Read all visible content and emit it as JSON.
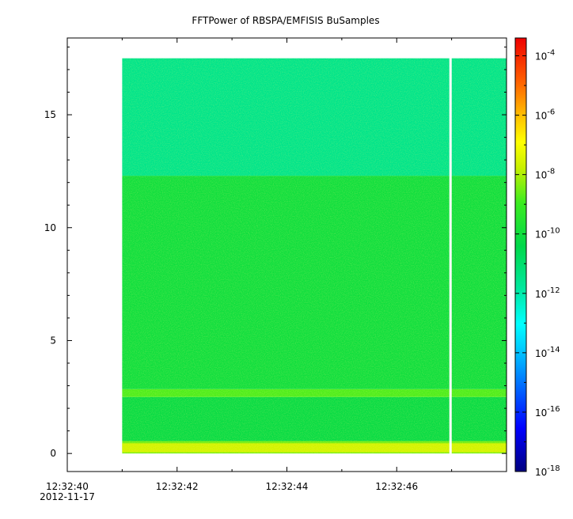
{
  "chart_data": {
    "type": "heatmap",
    "title": "FFTPower of RBSPA/EMFISIS  BuSamples",
    "xlabel": "",
    "ylabel": "",
    "x_axis": {
      "range": [
        "12:32:40",
        "12:32:48"
      ],
      "ticks": [
        {
          "time_s": 0,
          "label": "12:32:40",
          "sublabel": "2012-11-17"
        },
        {
          "time_s": 2,
          "label": "12:32:42"
        },
        {
          "time_s": 4,
          "label": "12:32:44"
        },
        {
          "time_s": 6,
          "label": "12:32:46"
        }
      ],
      "minor_ticks_s": [
        1,
        3,
        5,
        7
      ]
    },
    "y_axis": {
      "range": [
        -0.8,
        18.4
      ],
      "ticks": [
        0,
        5,
        10,
        15
      ],
      "tick_labels": [
        "0",
        "5",
        "10",
        "15"
      ]
    },
    "colorbar": {
      "scale": "log",
      "range_exponent": [
        -18,
        -3.4
      ],
      "tick_exponents": [
        -4,
        -6,
        -8,
        -10,
        -12,
        -14,
        -16,
        -18
      ]
    },
    "data_extent": {
      "x_start_s": 1.0,
      "x_end_s": 8.0,
      "y_min": 0,
      "y_max": 17.5,
      "gap_at_s": 6.98
    },
    "features": [
      {
        "freq_range": [
          0,
          0.55
        ],
        "log10_power": -8.5,
        "desc": "strong low band"
      },
      {
        "freq_range": [
          0.55,
          2.5
        ],
        "log10_power": -10.2
      },
      {
        "freq_range": [
          2.5,
          2.85
        ],
        "log10_power": -8.8,
        "desc": "bright line"
      },
      {
        "freq_range": [
          2.85,
          12.3
        ],
        "log10_power": -10.0
      },
      {
        "freq_range": [
          12.3,
          17.5
        ],
        "log10_power": -11.5
      }
    ]
  }
}
